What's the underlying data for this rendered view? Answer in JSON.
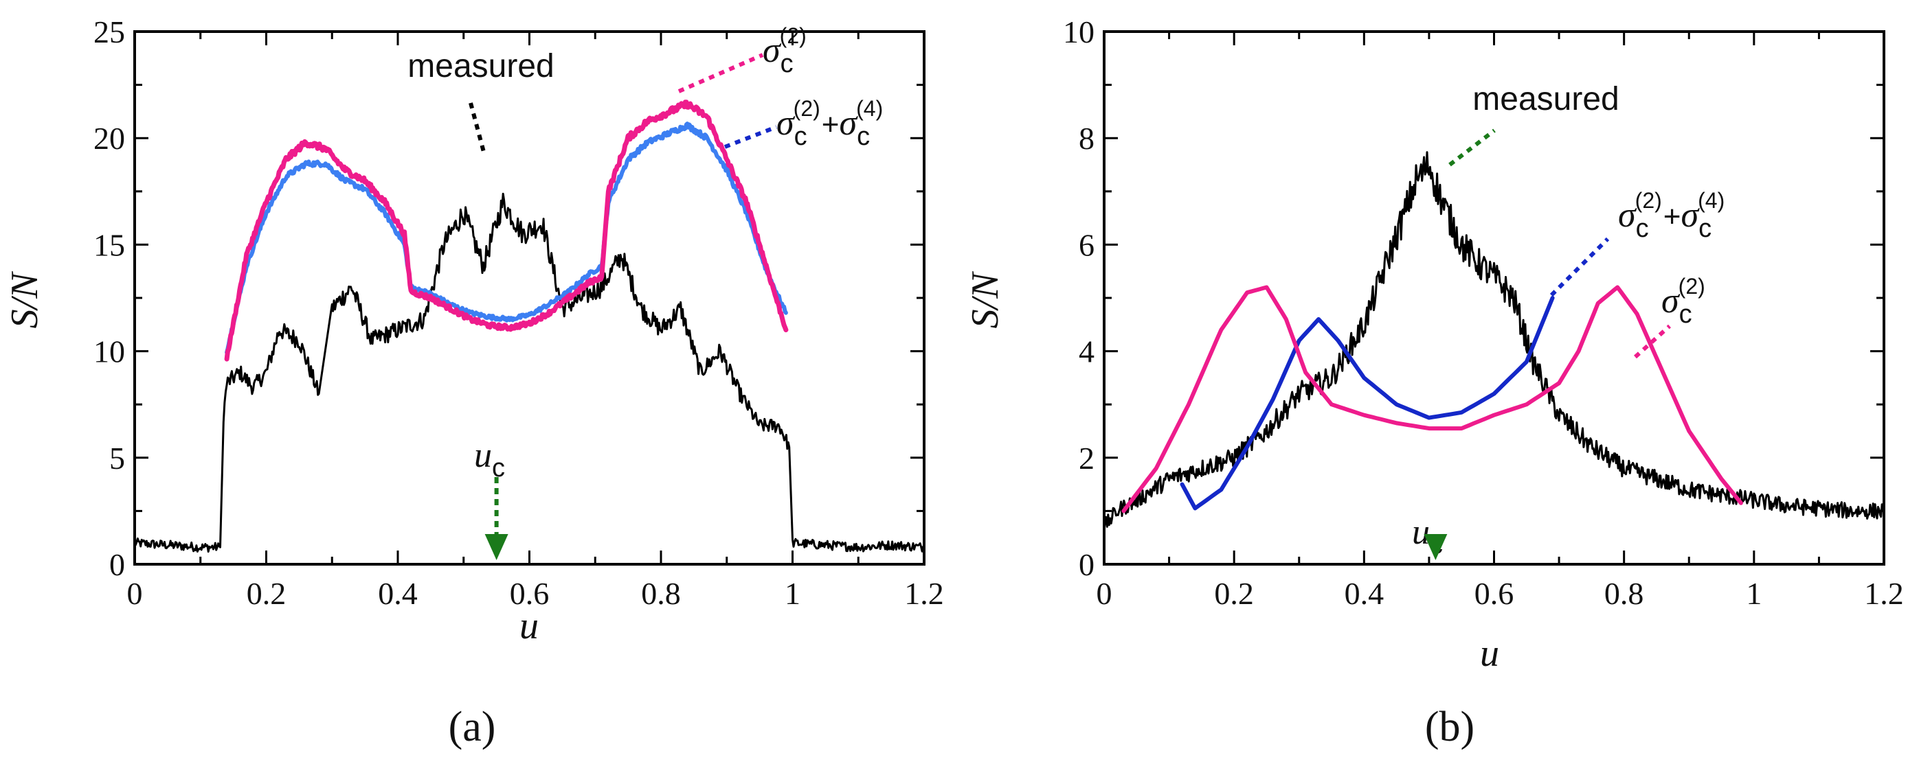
{
  "colors": {
    "measured": "#000000",
    "sigma2": "#ee1c8c",
    "sigma24_a": "#3c7ff2",
    "sigma24_b": "#1428c8",
    "uc_arrow": "#1a7a1a"
  },
  "chart_data": [
    {
      "type": "line",
      "panel": "(a)",
      "xlabel": "u",
      "ylabel": "S/N",
      "xlim": [
        0,
        1.2
      ],
      "ylim": [
        0,
        25
      ],
      "xticks": [
        "0",
        "0.2",
        "0.4",
        "0.6",
        "0.8",
        "1",
        "1.2"
      ],
      "yticks": [
        "0",
        "5",
        "10",
        "15",
        "20",
        "25"
      ],
      "series": [
        {
          "name": "measured",
          "x": [
            0,
            0.05,
            0.1,
            0.13,
            0.135,
            0.14,
            0.16,
            0.18,
            0.2,
            0.22,
            0.25,
            0.28,
            0.3,
            0.33,
            0.36,
            0.4,
            0.44,
            0.47,
            0.5,
            0.53,
            0.56,
            0.59,
            0.62,
            0.65,
            0.68,
            0.71,
            0.74,
            0.77,
            0.8,
            0.83,
            0.86,
            0.89,
            0.92,
            0.95,
            0.98,
            0.995,
            1.0,
            1.05,
            1.1,
            1.15,
            1.2
          ],
          "y": [
            1.0,
            0.9,
            0.8,
            0.8,
            7.0,
            8.5,
            9.0,
            8.3,
            9.0,
            11.0,
            10.5,
            8.0,
            12.0,
            13.0,
            10.5,
            11.0,
            11.5,
            15.0,
            16.5,
            14.0,
            17.0,
            15.5,
            16.0,
            12.0,
            12.5,
            13.0,
            14.5,
            12.0,
            11.0,
            12.0,
            9.0,
            10.0,
            8.0,
            6.5,
            6.5,
            5.5,
            1.0,
            0.9,
            0.8,
            0.9,
            0.8
          ],
          "noise": 0.5
        },
        {
          "name": "σc(2)",
          "x": [
            0.14,
            0.17,
            0.2,
            0.23,
            0.26,
            0.29,
            0.32,
            0.35,
            0.38,
            0.41,
            0.42,
            0.45,
            0.48,
            0.51,
            0.54,
            0.57,
            0.6,
            0.63,
            0.66,
            0.69,
            0.71,
            0.72,
            0.75,
            0.78,
            0.81,
            0.84,
            0.87,
            0.9,
            0.93,
            0.96,
            0.99
          ],
          "y": [
            9.7,
            14.5,
            17.0,
            19.0,
            19.8,
            19.5,
            18.5,
            18.0,
            17.0,
            15.5,
            12.8,
            12.5,
            12.0,
            11.5,
            11.2,
            11.1,
            11.3,
            11.8,
            12.5,
            13.2,
            13.5,
            17.5,
            20.0,
            20.8,
            21.2,
            21.6,
            21.0,
            19.0,
            17.0,
            14.0,
            11.0
          ],
          "noise": 0.12
        },
        {
          "name": "σc(2)+σc(4)",
          "x": [
            0.14,
            0.17,
            0.2,
            0.23,
            0.26,
            0.29,
            0.32,
            0.35,
            0.38,
            0.41,
            0.42,
            0.45,
            0.48,
            0.51,
            0.54,
            0.57,
            0.6,
            0.63,
            0.66,
            0.69,
            0.71,
            0.72,
            0.75,
            0.78,
            0.81,
            0.84,
            0.87,
            0.9,
            0.93,
            0.96,
            0.99
          ],
          "y": [
            10.0,
            14.0,
            16.5,
            18.2,
            18.8,
            18.8,
            18.0,
            17.6,
            16.5,
            15.0,
            13.0,
            12.7,
            12.2,
            11.8,
            11.6,
            11.5,
            11.7,
            12.2,
            12.8,
            13.6,
            14.0,
            17.0,
            19.0,
            19.8,
            20.2,
            20.6,
            20.0,
            18.5,
            16.5,
            13.8,
            11.8
          ],
          "noise": 0.1
        }
      ],
      "annotations": {
        "measured": "measured",
        "sigma": "σ",
        "sub": "c",
        "sup2": "(2)",
        "sup4": "(4)",
        "plus": "+",
        "uc_symbol": "u",
        "uc_sub": "c",
        "uc_x": 0.55
      }
    },
    {
      "type": "line",
      "panel": "(b)",
      "xlabel": "u",
      "ylabel": "S/N",
      "xlim": [
        0,
        1.2
      ],
      "ylim": [
        0,
        10
      ],
      "xticks": [
        "0",
        "0.2",
        "0.4",
        "0.6",
        "0.8",
        "1",
        "1.2"
      ],
      "yticks": [
        "0",
        "2",
        "4",
        "6",
        "8",
        "10"
      ],
      "series": [
        {
          "name": "measured",
          "x": [
            0,
            0.02,
            0.05,
            0.1,
            0.15,
            0.2,
            0.25,
            0.3,
            0.35,
            0.4,
            0.43,
            0.46,
            0.48,
            0.5,
            0.52,
            0.55,
            0.58,
            0.6,
            0.63,
            0.66,
            0.7,
            0.75,
            0.8,
            0.85,
            0.9,
            0.95,
            1.0,
            1.05,
            1.1,
            1.15,
            1.2
          ],
          "y": [
            0.7,
            1.0,
            1.2,
            1.6,
            1.8,
            2.0,
            2.5,
            3.2,
            3.5,
            4.5,
            5.5,
            6.5,
            7.2,
            7.5,
            6.8,
            6.0,
            5.6,
            5.4,
            5.0,
            3.8,
            2.8,
            2.2,
            1.8,
            1.6,
            1.4,
            1.3,
            1.2,
            1.1,
            1.05,
            1.0,
            1.0
          ],
          "noise": 0.3
        },
        {
          "name": "σc(2)",
          "x": [
            0.03,
            0.08,
            0.13,
            0.18,
            0.22,
            0.25,
            0.28,
            0.31,
            0.35,
            0.4,
            0.45,
            0.5,
            0.55,
            0.6,
            0.65,
            0.7,
            0.73,
            0.76,
            0.79,
            0.82,
            0.86,
            0.9,
            0.95,
            0.98
          ],
          "y": [
            1.0,
            1.8,
            3.0,
            4.4,
            5.1,
            5.2,
            4.6,
            3.6,
            3.0,
            2.8,
            2.65,
            2.55,
            2.55,
            2.8,
            3.0,
            3.4,
            4.0,
            4.9,
            5.2,
            4.7,
            3.6,
            2.5,
            1.6,
            1.15
          ]
        },
        {
          "name": "σc(2)+σc(4)",
          "x": [
            0.12,
            0.14,
            0.18,
            0.22,
            0.26,
            0.3,
            0.33,
            0.36,
            0.4,
            0.45,
            0.5,
            0.55,
            0.6,
            0.65,
            0.69
          ],
          "y": [
            1.5,
            1.05,
            1.4,
            2.2,
            3.1,
            4.2,
            4.6,
            4.2,
            3.5,
            3.0,
            2.75,
            2.85,
            3.2,
            3.8,
            5.0
          ]
        }
      ],
      "annotations": {
        "measured": "measured",
        "sigma": "σ",
        "sub": "c",
        "sup2": "(2)",
        "sup4": "(4)",
        "plus": "+",
        "uc_symbol": "u",
        "uc_sub": "c",
        "uc_x": 0.51
      }
    }
  ]
}
